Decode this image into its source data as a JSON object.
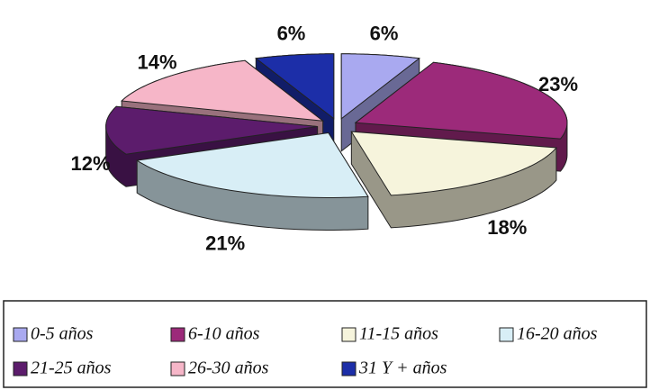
{
  "chart_data": {
    "type": "pie",
    "categories": [
      "0-5 años",
      "6-10 años",
      "11-15 años",
      "16-20 años",
      "21-25 años",
      "26-30 años",
      "31 Y + años"
    ],
    "values": [
      6,
      23,
      18,
      21,
      12,
      14,
      6
    ],
    "value_labels": [
      "6%",
      "23%",
      "18%",
      "21%",
      "12%",
      "14%",
      "6%"
    ],
    "colors": [
      "#a9a9f0",
      "#9c2a7a",
      "#f6f4dc",
      "#d8eef6",
      "#5c1c6c",
      "#f6b6c8",
      "#1c2ea8"
    ],
    "legend": "bottom"
  }
}
